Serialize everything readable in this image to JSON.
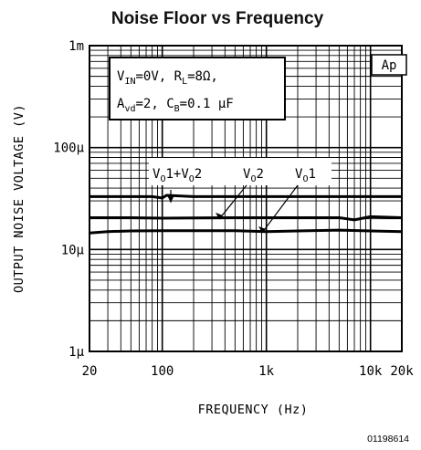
{
  "chart_data": {
    "type": "line",
    "title": "Noise Floor vs Frequency",
    "xlabel": "FREQUENCY (Hz)",
    "ylabel": "OUTPUT NOISE VOLTAGE (V)",
    "x_scale": "log",
    "y_scale": "log",
    "xlim": [
      20,
      20000
    ],
    "ylim": [
      1e-06,
      0.001
    ],
    "grid": true,
    "x_ticks": [
      {
        "value": 20,
        "label": "20"
      },
      {
        "value": 100,
        "label": "100"
      },
      {
        "value": 1000,
        "label": "1k"
      },
      {
        "value": 10000,
        "label": "10k"
      },
      {
        "value": 20000,
        "label": "20k"
      }
    ],
    "y_ticks": [
      {
        "value": 0.001,
        "label": "1m"
      },
      {
        "value": 0.0001,
        "label": "100µ"
      },
      {
        "value": 1e-05,
        "label": "10µ"
      },
      {
        "value": 1e-06,
        "label": "1µ"
      }
    ],
    "conditions": {
      "line1": "V_IN = 0V, R_L = 8 Ω,",
      "line2": "A_vd = 2, C_B = 0.1 µF"
    },
    "brand_label": "Ap",
    "figure_id": "01198614",
    "series": [
      {
        "name": "V_O1 + V_O2",
        "x": [
          20,
          50,
          80,
          100,
          110,
          200,
          500,
          1000,
          2000,
          5000,
          10000,
          20000
        ],
        "y": [
          3.3e-05,
          3.3e-05,
          3.3e-05,
          3.2e-05,
          3.4e-05,
          3.3e-05,
          3.3e-05,
          3.3e-05,
          3.3e-05,
          3.3e-05,
          3.3e-05,
          3.3e-05
        ]
      },
      {
        "name": "V_O2",
        "x": [
          20,
          50,
          100,
          200,
          500,
          1000,
          2000,
          5000,
          7000,
          10000,
          20000
        ],
        "y": [
          2.05e-05,
          2.05e-05,
          2.03e-05,
          2.04e-05,
          2.05e-05,
          2.05e-05,
          2.05e-05,
          2.05e-05,
          1.95e-05,
          2.1e-05,
          2.05e-05
        ]
      },
      {
        "name": "V_O1",
        "x": [
          20,
          30,
          50,
          100,
          200,
          500,
          1000,
          2000,
          5000,
          10000,
          20000
        ],
        "y": [
          1.45e-05,
          1.5e-05,
          1.52e-05,
          1.53e-05,
          1.53e-05,
          1.53e-05,
          1.5e-05,
          1.52e-05,
          1.55e-05,
          1.52e-05,
          1.5e-05
        ]
      }
    ]
  }
}
